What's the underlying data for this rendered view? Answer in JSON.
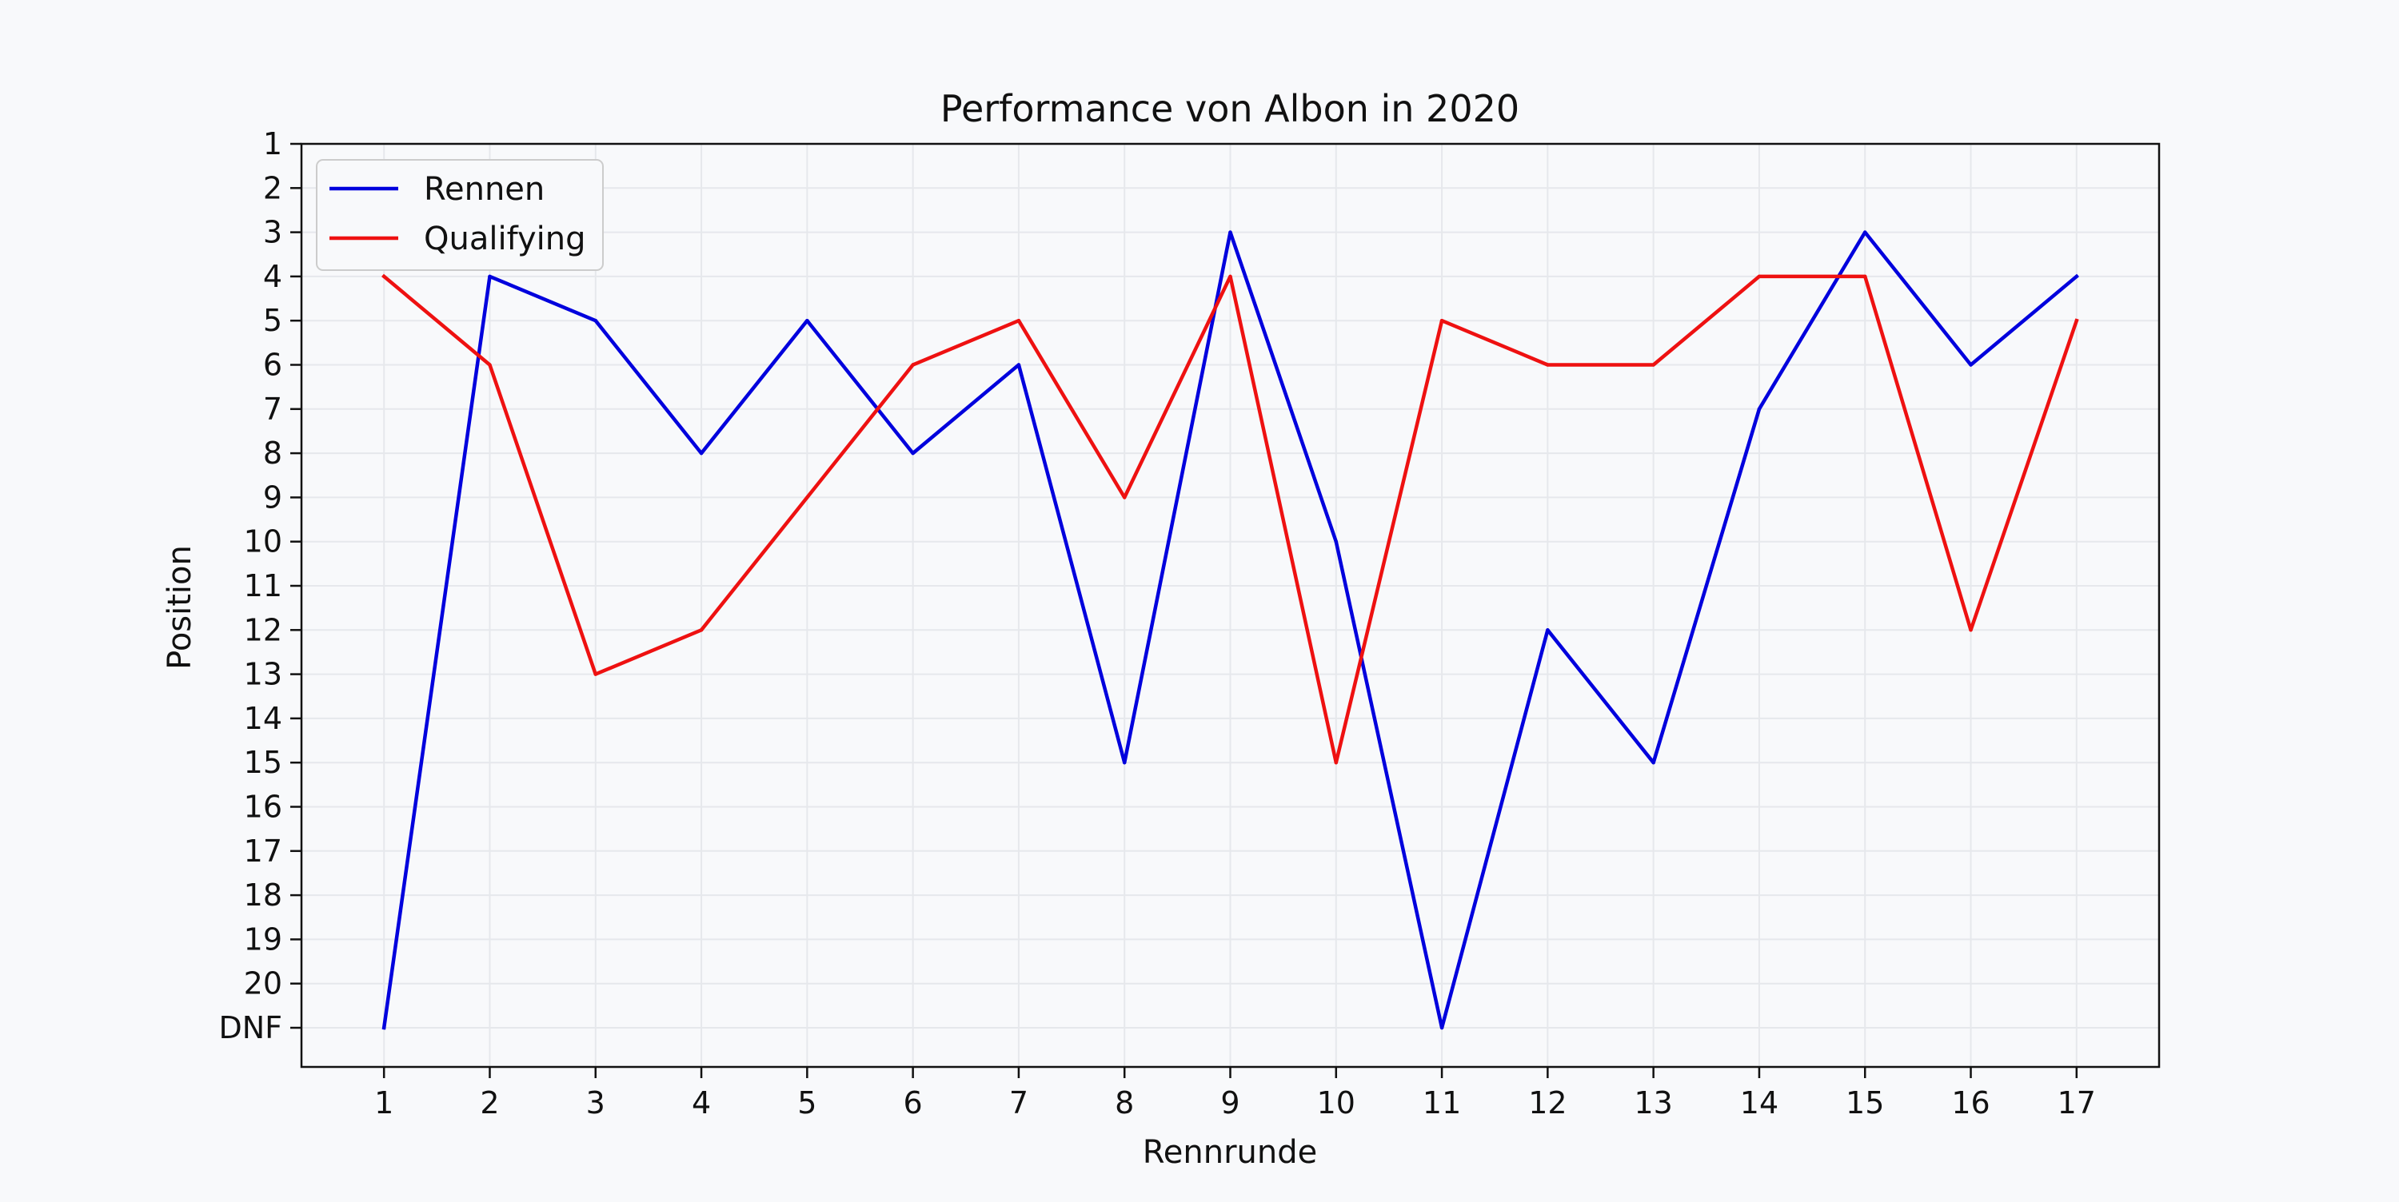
{
  "chart_data": {
    "type": "line",
    "title": "Performance von Albon in 2020",
    "xlabel": "Rennrunde",
    "ylabel": "Position",
    "x": [
      1,
      2,
      3,
      4,
      5,
      6,
      7,
      8,
      9,
      10,
      11,
      12,
      13,
      14,
      15,
      16,
      17
    ],
    "x_tick_labels": [
      "1",
      "2",
      "3",
      "4",
      "5",
      "6",
      "7",
      "8",
      "9",
      "10",
      "11",
      "12",
      "13",
      "14",
      "15",
      "16",
      "17"
    ],
    "y_ticks": [
      1,
      2,
      3,
      4,
      5,
      6,
      7,
      8,
      9,
      10,
      11,
      12,
      13,
      14,
      15,
      16,
      17,
      18,
      19,
      20,
      21
    ],
    "y_tick_labels": [
      "1",
      "2",
      "3",
      "4",
      "5",
      "6",
      "7",
      "8",
      "9",
      "10",
      "11",
      "12",
      "13",
      "14",
      "15",
      "16",
      "17",
      "18",
      "19",
      "20",
      "DNF"
    ],
    "ylim": [
      1,
      21
    ],
    "y_inverted": true,
    "grid": true,
    "legend_position": "top-left",
    "series": [
      {
        "name": "Rennen",
        "color": "#0000dd",
        "values": [
          21,
          4,
          5,
          8,
          5,
          8,
          6,
          15,
          3,
          10,
          21,
          12,
          15,
          7,
          3,
          6,
          4
        ]
      },
      {
        "name": "Qualifying",
        "color": "#ee1111",
        "values": [
          4,
          6,
          13,
          12,
          9,
          6,
          5,
          9,
          4,
          15,
          5,
          6,
          6,
          4,
          4,
          12,
          5
        ]
      }
    ]
  }
}
